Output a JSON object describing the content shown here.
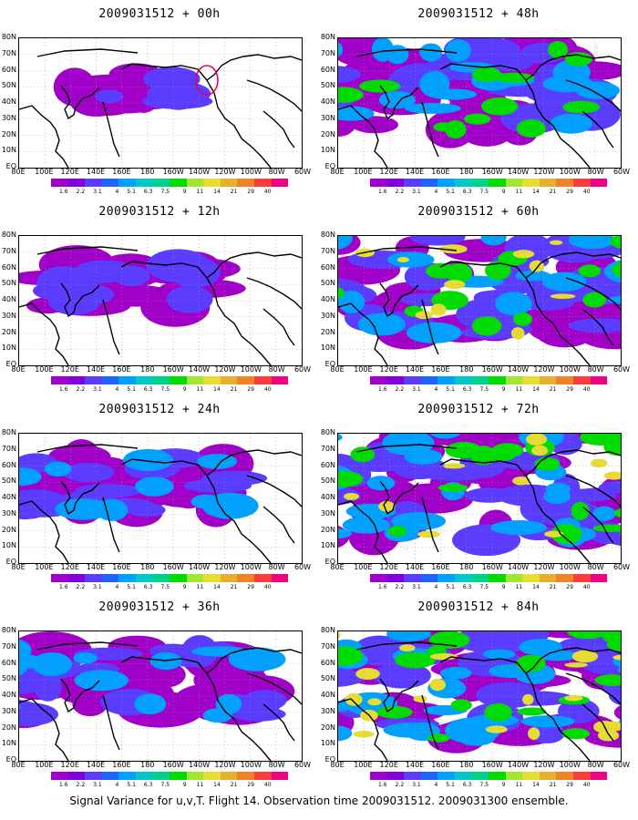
{
  "panels": [
    {
      "title": "2009031512 + 00h",
      "lead": 0
    },
    {
      "title": "2009031512 + 48h",
      "lead": 48
    },
    {
      "title": "2009031512 + 12h",
      "lead": 12
    },
    {
      "title": "2009031512 + 60h",
      "lead": 60
    },
    {
      "title": "2009031512 + 24h",
      "lead": 24
    },
    {
      "title": "2009031512 + 72h",
      "lead": 72
    },
    {
      "title": "2009031512 + 36h",
      "lead": 36
    },
    {
      "title": "2009031512 + 84h",
      "lead": 84
    }
  ],
  "lat_labels": [
    "80N",
    "70N",
    "60N",
    "50N",
    "40N",
    "30N",
    "20N",
    "10N",
    "EQ"
  ],
  "lon_labels": [
    "80E",
    "100E",
    "120E",
    "140E",
    "160E",
    "180",
    "160W",
    "140W",
    "120W",
    "100W",
    "80W",
    "60W"
  ],
  "colorbar": {
    "levels": [
      "1.6",
      "2.2",
      "3.1",
      "4",
      "5.1",
      "6.3",
      "7.5",
      "9",
      "11",
      "14",
      "21",
      "29",
      "40"
    ],
    "colors": [
      "#a000c8",
      "#8200dc",
      "#5a3cff",
      "#1e64ff",
      "#00a0ff",
      "#00c8c8",
      "#00d28c",
      "#00dc00",
      "#a0e632",
      "#e6dc32",
      "#e6af2d",
      "#f08228",
      "#fa3c3c",
      "#f00082"
    ]
  },
  "footer": "Signal Variance for u,v,T. Flight 14. Observation time 2009031512. 2009031300 ensemble."
}
